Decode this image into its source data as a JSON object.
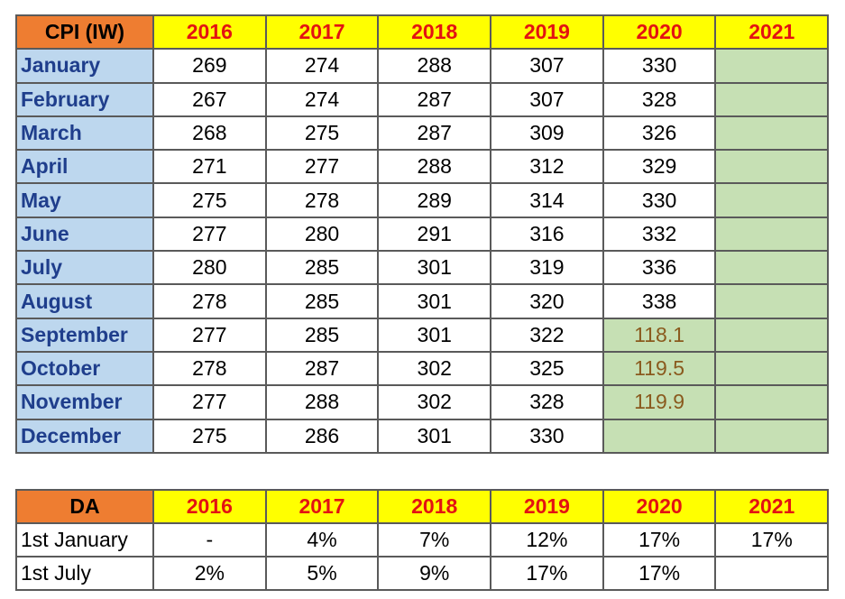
{
  "cpi_table": {
    "corner": "CPI (IW)",
    "years": [
      "2016",
      "2017",
      "2018",
      "2019",
      "2020",
      "2021"
    ],
    "rows": [
      {
        "month": "January",
        "values": [
          "269",
          "274",
          "288",
          "307",
          "330",
          ""
        ]
      },
      {
        "month": "February",
        "values": [
          "267",
          "274",
          "287",
          "307",
          "328",
          ""
        ]
      },
      {
        "month": "March",
        "values": [
          "268",
          "275",
          "287",
          "309",
          "326",
          ""
        ]
      },
      {
        "month": "April",
        "values": [
          "271",
          "277",
          "288",
          "312",
          "329",
          ""
        ]
      },
      {
        "month": "May",
        "values": [
          "275",
          "278",
          "289",
          "314",
          "330",
          ""
        ]
      },
      {
        "month": "June",
        "values": [
          "277",
          "280",
          "291",
          "316",
          "332",
          ""
        ]
      },
      {
        "month": "July",
        "values": [
          "280",
          "285",
          "301",
          "319",
          "336",
          ""
        ]
      },
      {
        "month": "August",
        "values": [
          "278",
          "285",
          "301",
          "320",
          "338",
          ""
        ]
      },
      {
        "month": "September",
        "values": [
          "277",
          "285",
          "301",
          "322",
          "118.1",
          ""
        ]
      },
      {
        "month": "October",
        "values": [
          "278",
          "287",
          "302",
          "325",
          "119.5",
          ""
        ]
      },
      {
        "month": "November",
        "values": [
          "277",
          "288",
          "302",
          "328",
          "119.9",
          ""
        ]
      },
      {
        "month": "December",
        "values": [
          "275",
          "286",
          "301",
          "330",
          "",
          ""
        ]
      }
    ]
  },
  "da_table": {
    "corner": "DA",
    "years": [
      "2016",
      "2017",
      "2018",
      "2019",
      "2020",
      "2021"
    ],
    "rows": [
      {
        "label": "1st January",
        "values": [
          "-",
          "4%",
          "7%",
          "12%",
          "17%",
          "17%"
        ]
      },
      {
        "label": "1st July",
        "values": [
          "2%",
          "5%",
          "9%",
          "17%",
          "17%",
          ""
        ]
      }
    ]
  },
  "colors": {
    "corner_bg": "#ee7d31",
    "year_header_bg": "#ffff00",
    "year_header_text": "#e31212",
    "month_bg": "#bdd7ee",
    "month_text": "#1f3e8c",
    "pending_bg": "#c6e0b4",
    "new_series_text": "#8a5a1e"
  }
}
